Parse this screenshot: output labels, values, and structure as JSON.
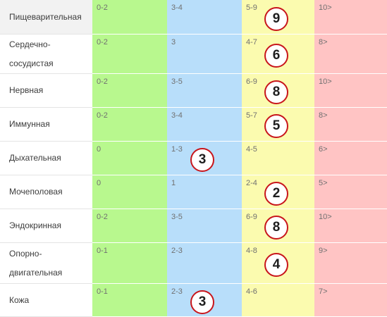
{
  "rows": [
    {
      "label": "Пищеварительная",
      "ranges": [
        "0-2",
        "3-4",
        "5-9",
        "10>"
      ],
      "marker": {
        "value": "9",
        "zone": 2
      }
    },
    {
      "label": "Сердечно-сосудистая",
      "ranges": [
        "0-2",
        "3",
        "4-7",
        "8>"
      ],
      "marker": {
        "value": "6",
        "zone": 2
      }
    },
    {
      "label": "Нервная",
      "ranges": [
        "0-2",
        "3-5",
        "6-9",
        "10>"
      ],
      "marker": {
        "value": "8",
        "zone": 2
      }
    },
    {
      "label": "Иммунная",
      "ranges": [
        "0-2",
        "3-4",
        "5-7",
        "8>"
      ],
      "marker": {
        "value": "5",
        "zone": 2
      }
    },
    {
      "label": "Дыхательная",
      "ranges": [
        "0",
        "1-3",
        "4-5",
        "6>"
      ],
      "marker": {
        "value": "3",
        "zone": 1
      }
    },
    {
      "label": "Мочеполовая",
      "ranges": [
        "0",
        "1",
        "2-4",
        "5>"
      ],
      "marker": {
        "value": "2",
        "zone": 2
      }
    },
    {
      "label": "Эндокринная",
      "ranges": [
        "0-2",
        "3-5",
        "6-9",
        "10>"
      ],
      "marker": {
        "value": "8",
        "zone": 2
      }
    },
    {
      "label": "Опорно-двигательная",
      "ranges": [
        "0-1",
        "2-3",
        "4-8",
        "9>"
      ],
      "marker": {
        "value": "4",
        "zone": 2
      }
    },
    {
      "label": "Кожа",
      "ranges": [
        "0-1",
        "2-3",
        "4-6",
        "7>"
      ],
      "marker": {
        "value": "3",
        "zone": 1
      }
    }
  ],
  "colors": {
    "zone_0": "#b8f88e",
    "zone_1": "#b8defa",
    "zone_2": "#fbfbaf",
    "zone_3": "#ffc4c4",
    "marker_border": "#c8151b"
  }
}
